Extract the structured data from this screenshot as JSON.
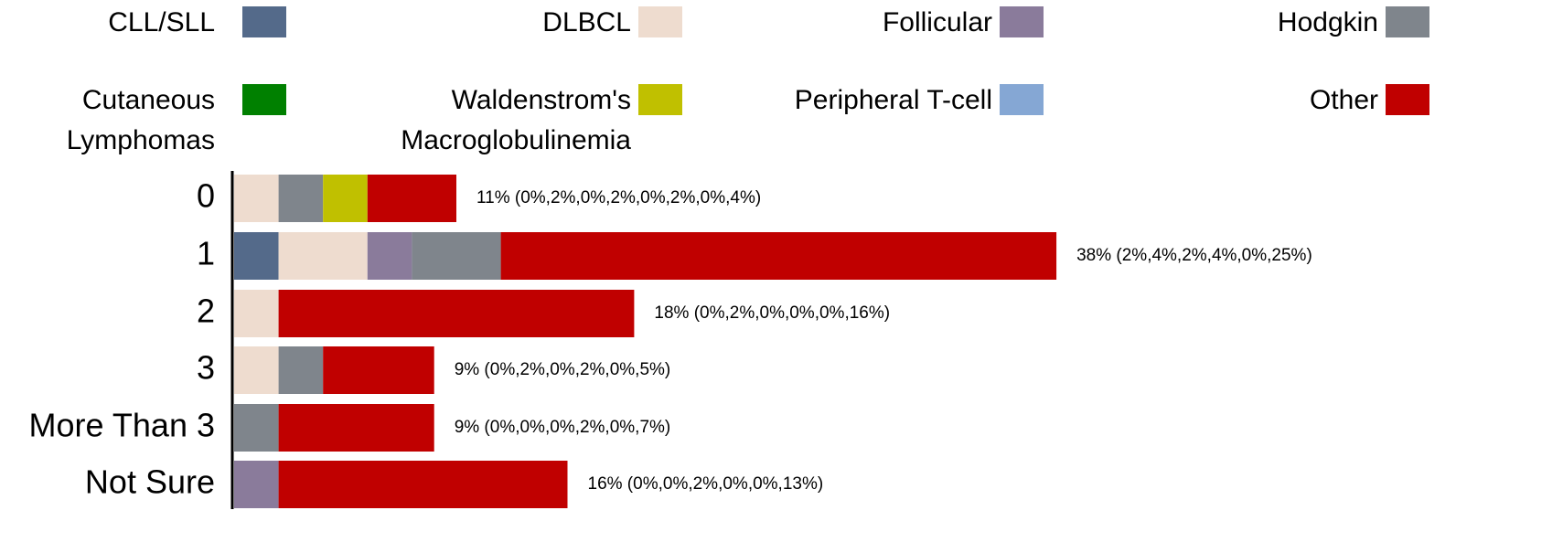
{
  "chart_data": {
    "type": "stacked_bar_horizontal",
    "categories": [
      "0",
      "1",
      "2",
      "3",
      "More Than 3",
      "Not Sure"
    ],
    "series": [
      {
        "name": "CLL/SLL",
        "color": "#546a8a",
        "values": [
          0,
          2,
          0,
          0,
          0,
          0
        ]
      },
      {
        "name": "DLBCL",
        "color": "#eedccf",
        "values": [
          2,
          4,
          2,
          2,
          0,
          0
        ]
      },
      {
        "name": "Follicular",
        "color": "#8a7b9b",
        "values": [
          0,
          2,
          0,
          0,
          0,
          2
        ]
      },
      {
        "name": "Hodgkin",
        "color": "#7f858c",
        "values": [
          2,
          4,
          0,
          2,
          2,
          0
        ]
      },
      {
        "name": "Cutaneous Lymphomas",
        "color": "#008000",
        "values": [
          0,
          0,
          0,
          0,
          0,
          0
        ]
      },
      {
        "name": "Waldenstrom's Macroglobulinemia",
        "color": "#c0c000",
        "values": [
          2,
          0,
          0,
          0,
          0,
          0
        ]
      },
      {
        "name": "Peripheral T-cell",
        "color": "#85a7d4",
        "values": [
          0,
          0,
          0,
          0,
          0,
          0
        ]
      },
      {
        "name": "Other",
        "color": "#c00000",
        "values": [
          4,
          25,
          16,
          5,
          7,
          13
        ]
      }
    ],
    "value_labels": [
      "11% (0%,2%,0%,2%,0%,2%,0%,4%)",
      "38% (2%,4%,2%,4%,0%,25%)",
      "18% (0%,2%,0%,0%,0%,16%)",
      "9% (0%,2%,0%,2%,0%,5%)",
      "9% (0%,0%,0%,2%,0%,7%)",
      "16% (0%,0%,2%,0%,0%,13%)"
    ],
    "legend": "top"
  }
}
